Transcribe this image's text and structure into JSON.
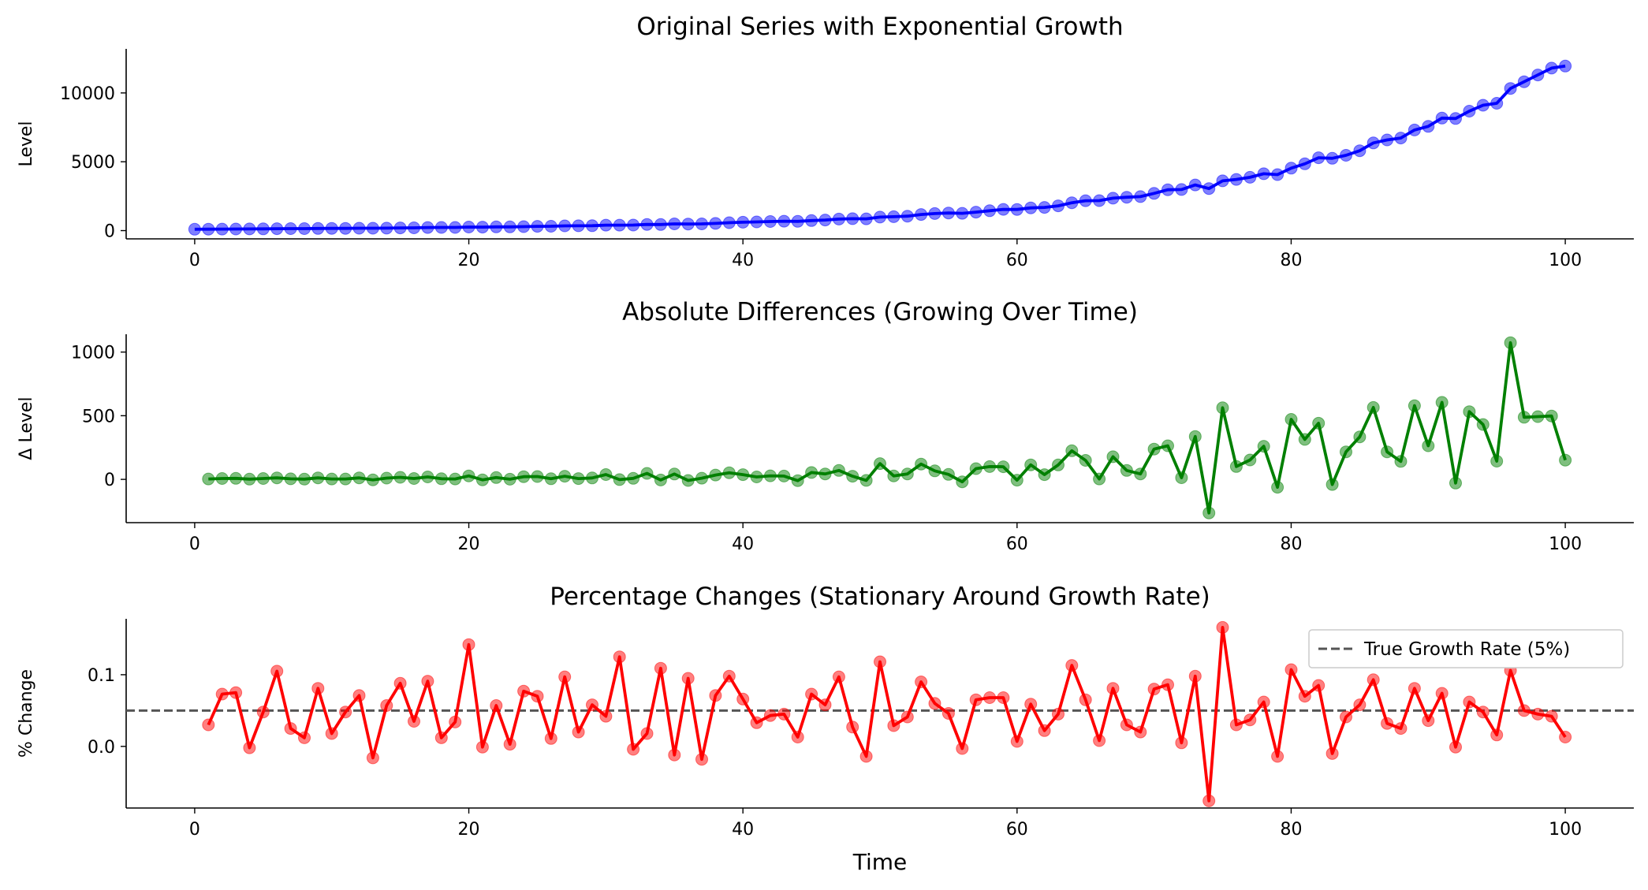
{
  "figure": {
    "xlabel": "Time"
  },
  "chart_data": [
    {
      "type": "line",
      "title": "Original Series with Exponential Growth",
      "xlabel": "",
      "ylabel": "Level",
      "xlim": [
        -5,
        105
      ],
      "ylim": [
        -600,
        13200
      ],
      "xticks": [
        0,
        20,
        40,
        60,
        80,
        100
      ],
      "yticks": [
        0,
        5000,
        10000
      ],
      "grid": false,
      "color": "#0000ff",
      "x_start": 0,
      "series": [
        {
          "values": [
            100,
            103,
            110,
            118,
            120,
            127,
            139,
            143,
            145,
            157,
            160,
            163,
            175,
            171,
            181,
            197,
            204,
            223,
            228,
            231,
            258,
            254,
            268,
            269,
            290,
            312,
            317,
            342,
            348,
            359,
            397,
            395,
            403,
            450,
            445,
            487,
            478,
            487,
            521,
            573,
            610,
            629,
            657,
            683,
            673,
            727,
            770,
            840,
            865,
            857,
            981,
            1008,
            1051,
            1171,
            1238,
            1277,
            1258,
            1342,
            1442,
            1541,
            1535,
            1649,
            1686,
            1799,
            2024,
            2173,
            2176,
            2354,
            2424,
            2467,
            2705,
            2969,
            2982,
            3319,
            3055,
            3617,
            3718,
            3870,
            4130,
            4068,
            4539,
            4853,
            5294,
            5254,
            5470,
            5804,
            6369,
            6585,
            6726,
            7305,
            7569,
            8174,
            8145,
            8677,
            9108,
            9251,
            10324,
            10812,
            11305,
            11803,
            11954
          ]
        }
      ]
    },
    {
      "type": "line",
      "title": "Absolute Differences (Growing Over Time)",
      "xlabel": "",
      "ylabel": "Δ Level",
      "xlim": [
        -5,
        105
      ],
      "ylim": [
        -340,
        1140
      ],
      "xticks": [
        0,
        20,
        40,
        60,
        80,
        100
      ],
      "yticks": [
        0,
        500,
        1000
      ],
      "grid": false,
      "color": "#008000",
      "x_start": 1,
      "series": [
        {
          "values": [
            3,
            7,
            8,
            2,
            7,
            12,
            4,
            2,
            12,
            3,
            3,
            12,
            -4,
            10,
            16,
            7,
            19,
            5,
            3,
            27,
            -4,
            14,
            1,
            21,
            22,
            5,
            25,
            6,
            11,
            38,
            -2,
            8,
            47,
            -5,
            42,
            -9,
            9,
            34,
            52,
            37,
            19,
            28,
            26,
            -10,
            54,
            43,
            70,
            25,
            -8,
            124,
            27,
            43,
            120,
            67,
            39,
            -19,
            84,
            100,
            99,
            -6,
            114,
            37,
            113,
            225,
            149,
            3,
            178,
            70,
            43,
            238,
            264,
            13,
            337,
            -264,
            562,
            101,
            152,
            260,
            -62,
            471,
            314,
            441,
            -40,
            216,
            334,
            565,
            216,
            141,
            579,
            264,
            605,
            -29,
            532,
            431,
            143,
            1073,
            488,
            493,
            498,
            151
          ]
        }
      ]
    },
    {
      "type": "line",
      "title": "Percentage Changes (Stationary Around Growth Rate)",
      "xlabel": "Time",
      "ylabel": "% Change",
      "xlim": [
        -5,
        105
      ],
      "ylim": [
        -0.086,
        0.178
      ],
      "xticks": [
        0,
        20,
        40,
        60,
        80,
        100
      ],
      "yticks": [
        0.0,
        0.1
      ],
      "ytick_labels": [
        "0.0",
        "0.1"
      ],
      "grid": false,
      "legend": "upper right",
      "color": "#ff0000",
      "x_start": 1,
      "series": [
        {
          "values": [
            0.03,
            0.073,
            0.075,
            -0.002,
            0.048,
            0.105,
            0.025,
            0.012,
            0.081,
            0.018,
            0.048,
            0.071,
            -0.016,
            0.057,
            0.088,
            0.035,
            0.091,
            0.012,
            0.034,
            0.142,
            -0.001,
            0.057,
            0.003,
            0.077,
            0.07,
            0.011,
            0.097,
            0.02,
            0.058,
            0.042,
            0.125,
            -0.004,
            0.018,
            0.109,
            -0.012,
            0.095,
            -0.018,
            0.071,
            0.098,
            0.066,
            0.033,
            0.043,
            0.045,
            0.013,
            0.073,
            0.058,
            0.097,
            0.027,
            -0.014,
            0.118,
            0.029,
            0.041,
            0.09,
            0.06,
            0.046,
            -0.003,
            0.065,
            0.068,
            0.068,
            0.007,
            0.059,
            0.022,
            0.045,
            0.113,
            0.065,
            0.008,
            0.081,
            0.03,
            0.02,
            0.08,
            0.086,
            0.005,
            0.098,
            -0.076,
            0.166,
            0.03,
            0.037,
            0.062,
            -0.014,
            0.107,
            0.07,
            0.085,
            -0.01,
            0.041,
            0.058,
            0.093,
            0.032,
            0.025,
            0.081,
            0.036,
            0.074,
            -0.001,
            0.062,
            0.048,
            0.016,
            0.106,
            0.05,
            0.045,
            0.042,
            0.013
          ]
        }
      ],
      "reference_line": {
        "y": 0.05,
        "label": "True Growth Rate (5%)",
        "color": "#555555",
        "style": "dashed"
      }
    }
  ]
}
